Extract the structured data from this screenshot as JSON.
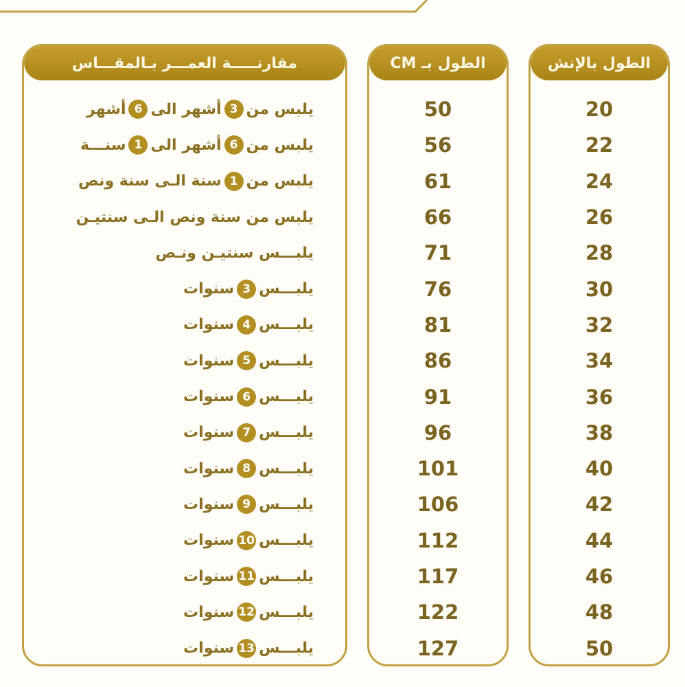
{
  "colors": {
    "gold": "#b38f22",
    "text": "#7b6420",
    "border": "#c2a143"
  },
  "headers": {
    "age": "مقارنـــــة العمـــر بـالمقـــاس",
    "cm": "الطول بـ CM",
    "inch": "الطول بالإنش"
  },
  "inch": [
    "20",
    "22",
    "24",
    "26",
    "28",
    "30",
    "32",
    "34",
    "36",
    "38",
    "40",
    "42",
    "44",
    "46",
    "48",
    "50"
  ],
  "cm": [
    "50",
    "56",
    "61",
    "66",
    "71",
    "76",
    "81",
    "86",
    "91",
    "96",
    "101",
    "106",
    "112",
    "117",
    "122",
    "127"
  ],
  "age": [
    {
      "pre": "يلبس من",
      "n1": "3",
      "mid": "أشهر الى",
      "n2": "6",
      "post": "أشهر"
    },
    {
      "pre": "يلبس من",
      "n1": "6",
      "mid": "أشهر الى",
      "n2": "1",
      "post": "سنـــة"
    },
    {
      "pre": "يلبس من",
      "n1": "1",
      "mid": "سنة الـى سنة ونص"
    },
    {
      "pre": "يلبس من سنة ونص الـى  سنتيـن"
    },
    {
      "pre": "يلبـــس سنتيـن ونـص"
    },
    {
      "pre": "يلبـــس",
      "n1": "3",
      "mid": "سنوات"
    },
    {
      "pre": "يلبـــس",
      "n1": "4",
      "mid": "سنوات"
    },
    {
      "pre": "يلبـــس",
      "n1": "5",
      "mid": "سنوات"
    },
    {
      "pre": "يلبـــس",
      "n1": "6",
      "mid": "سنوات"
    },
    {
      "pre": "يلبـــس",
      "n1": "7",
      "mid": "سنوات"
    },
    {
      "pre": "يلبـــس",
      "n1": "8",
      "mid": "سنوات"
    },
    {
      "pre": "يلبـــس",
      "n1": "9",
      "mid": "سنوات"
    },
    {
      "pre": "يلبـــس",
      "n1": "10",
      "mid": "سنوات"
    },
    {
      "pre": "يلبـــس",
      "n1": "11",
      "mid": "سنوات"
    },
    {
      "pre": "يلبـــس",
      "n1": "12",
      "mid": "سنوات"
    },
    {
      "pre": "يلبـــس",
      "n1": "13",
      "mid": "سنوات"
    }
  ]
}
